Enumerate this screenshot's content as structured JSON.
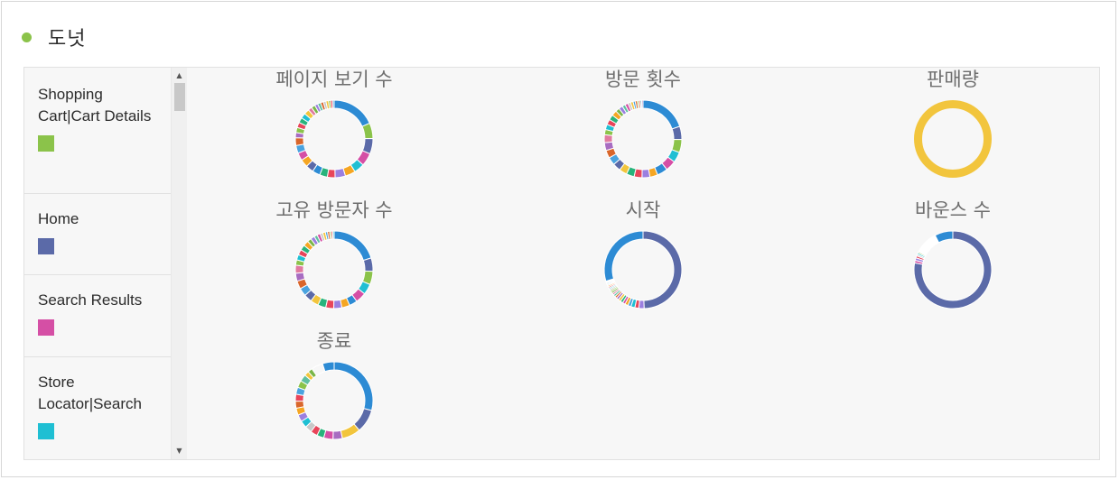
{
  "header": {
    "title": "도넛",
    "dot_color": "#8bc34a"
  },
  "legend": {
    "items": [
      {
        "label": "Shopping Cart|Cart Details",
        "color": "#8bc34a"
      },
      {
        "label": "Home",
        "color": "#5b6aa8"
      },
      {
        "label": "Search Results",
        "color": "#d54fa5"
      },
      {
        "label": "Store Locator|Search",
        "color": "#1fbfd3"
      }
    ]
  },
  "colors": {
    "primary": "#2d8bd4",
    "palette": [
      "#8bc34a",
      "#5b6aa8",
      "#d54fa5",
      "#1fbfd3",
      "#f5a623",
      "#2d8bd4",
      "#9b7fe0",
      "#e8455a",
      "#29b37c",
      "#f2c53d",
      "#4aa3df",
      "#d9662b",
      "#a86cc1",
      "#5fc0a0",
      "#e07aa0",
      "#7ab648",
      "#c8c8c8"
    ]
  },
  "chart_data": [
    {
      "type": "pie",
      "title": "페이지 보기 수",
      "values": [
        17,
        6,
        6,
        5,
        4,
        4,
        4,
        3,
        3,
        3,
        3,
        3,
        3,
        3,
        3,
        2,
        2,
        2,
        2,
        2,
        2,
        1.5,
        1.5,
        1.2,
        1.2,
        1.1,
        1,
        1,
        0.8,
        0.8,
        0.6
      ],
      "colors": [
        "#2d8bd4",
        "#8bc34a",
        "#5b6aa8",
        "#d54fa5",
        "#1fbfd3",
        "#f5a623",
        "#9b7fe0",
        "#e8455a",
        "#29b37c",
        "#2d8bd4",
        "#5b6aa8",
        "#f5a623",
        "#d54fa5",
        "#4aa3df",
        "#d9662b",
        "#a86cc1",
        "#8bc34a",
        "#e8455a",
        "#29b37c",
        "#1fbfd3",
        "#f2c53d",
        "#e07aa0",
        "#7ab648",
        "#9b7fe0",
        "#5fc0a0",
        "#d9662b",
        "#c8c8c8",
        "#f2c53d",
        "#8bc34a",
        "#e8455a",
        "#4aa3df"
      ]
    },
    {
      "type": "pie",
      "title": "방문 횟수",
      "values": [
        18,
        5,
        5,
        4,
        4,
        4,
        3,
        3,
        3,
        3,
        3,
        3,
        3,
        3,
        3,
        3,
        2,
        2,
        2,
        2,
        2,
        1.5,
        1.5,
        1.2,
        1.2,
        1,
        1,
        0.8,
        0.8,
        0.6,
        0.6,
        0.5,
        0.5
      ],
      "colors": [
        "#2d8bd4",
        "#5b6aa8",
        "#8bc34a",
        "#1fbfd3",
        "#d54fa5",
        "#2d8bd4",
        "#f5a623",
        "#9b7fe0",
        "#e8455a",
        "#29b37c",
        "#f2c53d",
        "#5b6aa8",
        "#4aa3df",
        "#d9662b",
        "#a86cc1",
        "#e07aa0",
        "#8bc34a",
        "#1fbfd3",
        "#e8455a",
        "#29b37c",
        "#f5a623",
        "#7ab648",
        "#9b7fe0",
        "#5fc0a0",
        "#d54fa5",
        "#c8c8c8",
        "#f2c53d",
        "#4aa3df",
        "#d9662b",
        "#8bc34a",
        "#e8455a",
        "#1fbfd3",
        "#a86cc1"
      ]
    },
    {
      "type": "pie",
      "title": "판매량",
      "values": [
        100
      ],
      "colors": [
        "#f2c53d"
      ]
    },
    {
      "type": "pie",
      "title": "고유 방문자 수",
      "values": [
        18,
        5,
        5,
        4,
        4,
        3,
        3,
        3,
        3,
        3,
        3,
        3,
        3,
        3,
        3,
        3,
        2,
        2,
        2,
        2,
        2,
        1.5,
        1.5,
        1.2,
        1.2,
        1,
        1,
        0.8,
        0.8,
        0.6,
        0.6,
        0.5
      ],
      "colors": [
        "#2d8bd4",
        "#5b6aa8",
        "#8bc34a",
        "#1fbfd3",
        "#d54fa5",
        "#2d8bd4",
        "#f5a623",
        "#9b7fe0",
        "#e8455a",
        "#29b37c",
        "#f2c53d",
        "#5b6aa8",
        "#4aa3df",
        "#d9662b",
        "#a86cc1",
        "#e07aa0",
        "#8bc34a",
        "#1fbfd3",
        "#e8455a",
        "#29b37c",
        "#f5a623",
        "#7ab648",
        "#9b7fe0",
        "#5fc0a0",
        "#d54fa5",
        "#c8c8c8",
        "#f2c53d",
        "#4aa3df",
        "#d9662b",
        "#8bc34a",
        "#e8455a",
        "#1fbfd3"
      ]
    },
    {
      "type": "pie",
      "title": "시작",
      "values": [
        45,
        2,
        1.5,
        1.5,
        1.2,
        1.2,
        1,
        1,
        1,
        0.9,
        0.8,
        0.8,
        0.7,
        0.7,
        0.6,
        0.6,
        0.5,
        0.5,
        0.5,
        0.4,
        0.4,
        0.4,
        0.3,
        0.3,
        27
      ],
      "colors": [
        "#5b6aa8",
        "#9b7fe0",
        "#e8455a",
        "#1fbfd3",
        "#4aa3df",
        "#f5a623",
        "#d54fa5",
        "#29b37c",
        "#f2c53d",
        "#a86cc1",
        "#d9662b",
        "#5fc0a0",
        "#e07aa0",
        "#7ab648",
        "#8bc34a",
        "#c8c8c8",
        "#1fbfd3",
        "#e8455a",
        "#f5a623",
        "#9b7fe0",
        "#29b37c",
        "#4aa3df",
        "#d54fa5",
        "#f2c53d",
        "#2d8bd4"
      ]
    },
    {
      "type": "pie",
      "title": "바운스 수",
      "values": [
        72,
        1,
        1,
        0.8,
        0.6,
        0.6,
        0.5,
        9,
        7
      ],
      "colors": [
        "#5b6aa8",
        "#d54fa5",
        "#9b7fe0",
        "#e8455a",
        "#c8c8c8",
        "#1fbfd3",
        "#8bc34a",
        "#ffffff",
        "#2d8bd4"
      ]
    },
    {
      "type": "pie",
      "title": "종료",
      "values": [
        30,
        10,
        8,
        4,
        4,
        3,
        3,
        3,
        3,
        3,
        3,
        3,
        3,
        3,
        3,
        3,
        2,
        2,
        5,
        5
      ],
      "colors": [
        "#2d8bd4",
        "#5b6aa8",
        "#f2c53d",
        "#a86cc1",
        "#d54fa5",
        "#29b37c",
        "#e8455a",
        "#c8c8c8",
        "#1fbfd3",
        "#9b7fe0",
        "#f5a623",
        "#d9662b",
        "#e8455a",
        "#4aa3df",
        "#8bc34a",
        "#5fc0a0",
        "#f2c53d",
        "#7ab648",
        "#f7f7f7",
        "#2d8bd4"
      ]
    }
  ]
}
